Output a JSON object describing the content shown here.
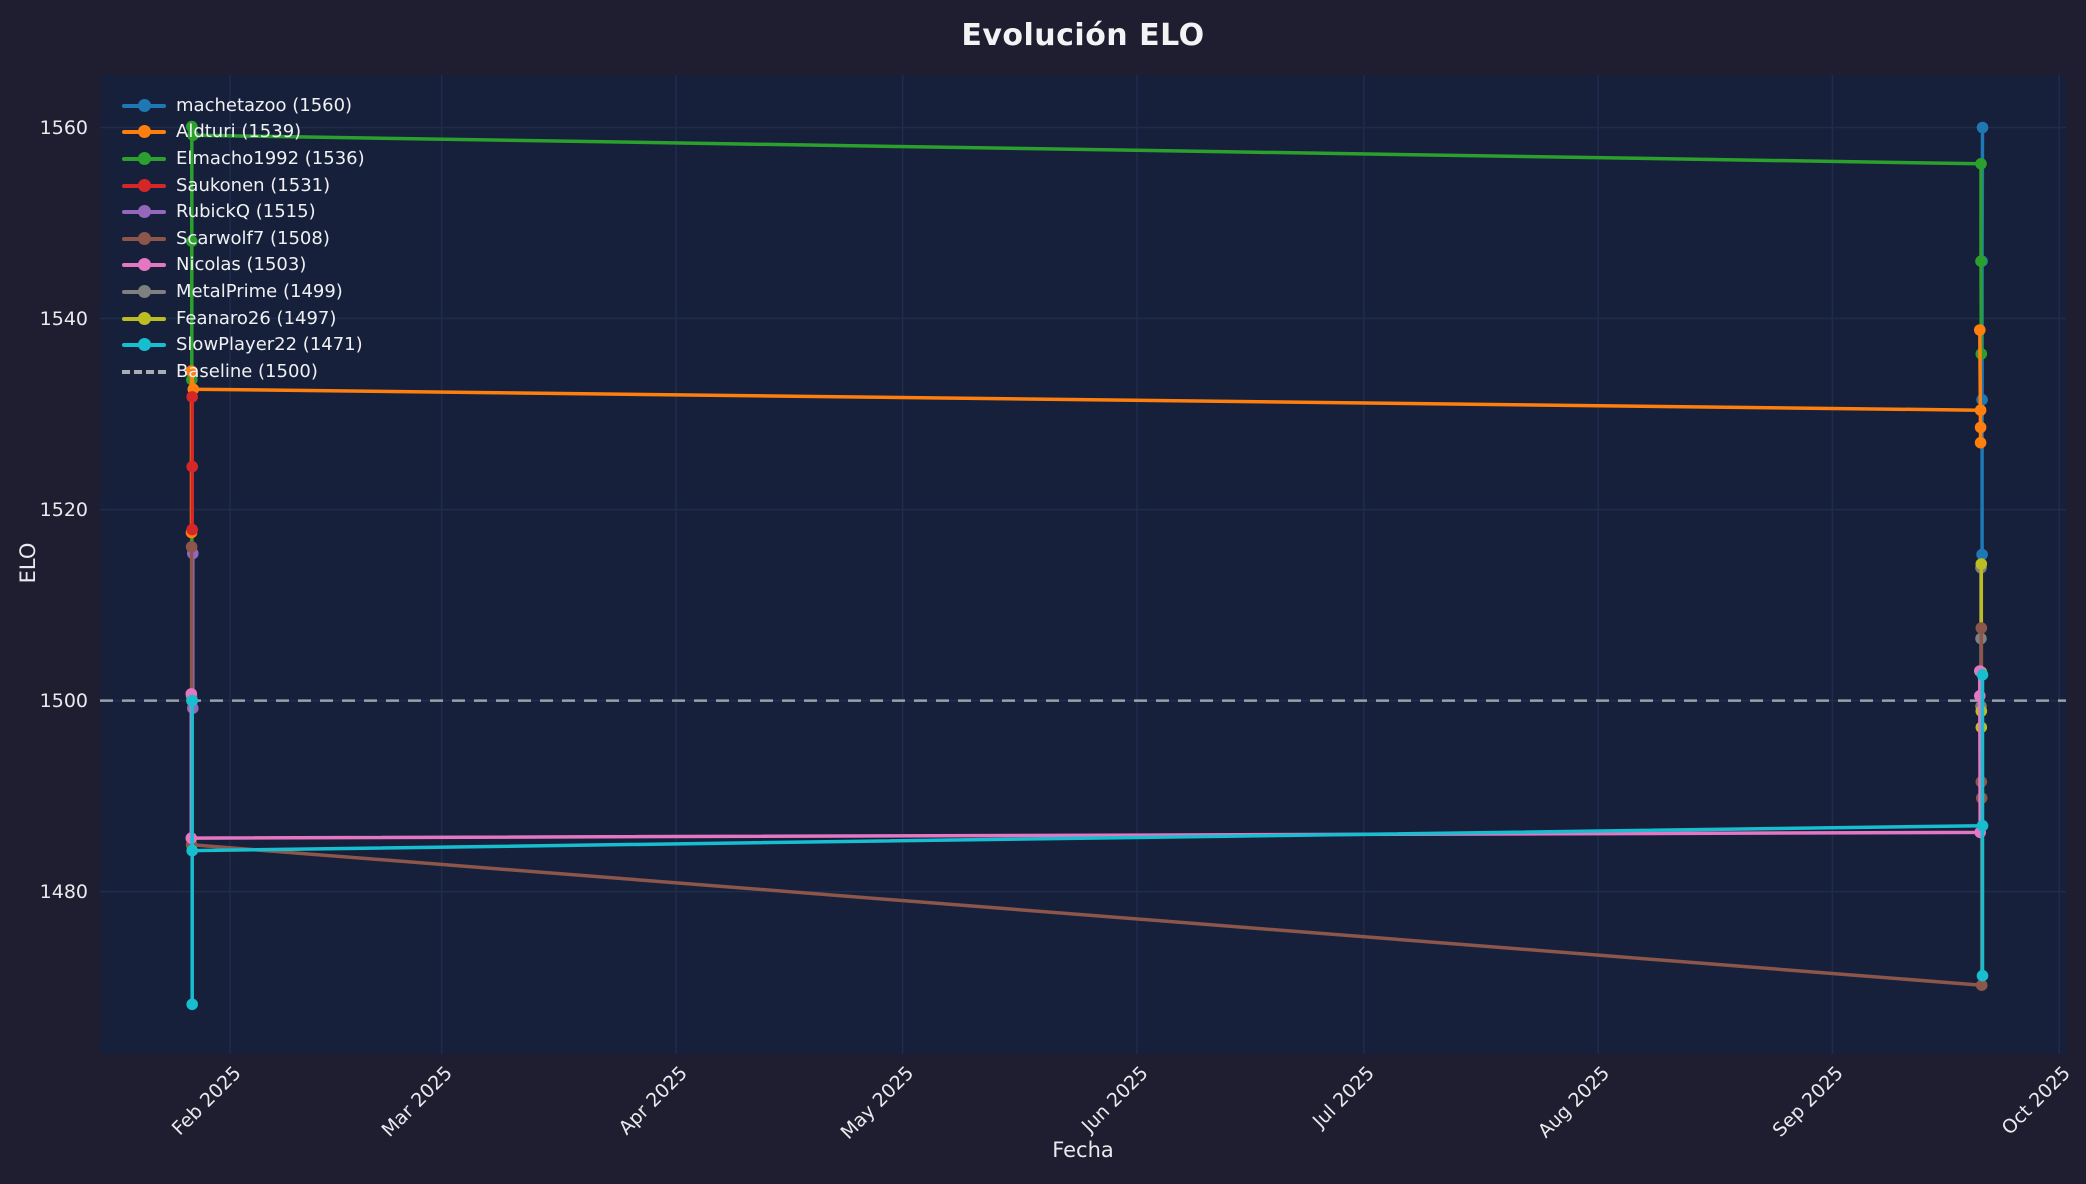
{
  "colors": {
    "figure_bg": "#1e1e30",
    "plot_bg": "#16203a",
    "text": "#eef0f2",
    "grid": "#1f2c4d",
    "baseline": "#a9aeb6"
  },
  "chart_data": {
    "type": "line",
    "title": "Evolución ELO",
    "xlabel": "Fecha",
    "ylabel": "ELO",
    "legend_position": "upper left",
    "grid": true,
    "axis": {
      "x_days": [
        0,
        260.1
      ],
      "ylim": [
        1463,
        1565.5
      ]
    },
    "y_ticks": [
      {
        "label": "1560",
        "value": 1560
      },
      {
        "label": "1540",
        "value": 1540
      },
      {
        "label": "1520",
        "value": 1520
      },
      {
        "label": "1500",
        "value": 1500
      },
      {
        "label": "1480",
        "value": 1480
      }
    ],
    "x_ticks": [
      {
        "label": "Feb 2025",
        "day": 17.2
      },
      {
        "label": "Mar 2025",
        "day": 45.2
      },
      {
        "label": "Apr 2025",
        "day": 76.2
      },
      {
        "label": "May 2025",
        "day": 106.2
      },
      {
        "label": "Jun 2025",
        "day": 137.2
      },
      {
        "label": "Jul 2025",
        "day": 167.2
      },
      {
        "label": "Aug 2025",
        "day": 198.2
      },
      {
        "label": "Sep 2025",
        "day": 229.2
      },
      {
        "label": "Oct 2025",
        "day": 259.2
      }
    ],
    "baseline": {
      "label": "Baseline (1500)",
      "value": 1500,
      "color": "#a9aeb6",
      "dashed": true
    },
    "series": [
      {
        "name": "machetazoo",
        "final_elo": 1560,
        "label": "machetazoo (1560)",
        "color": "#1f77b4",
        "points": [
          [
            249.0,
            1515.3
          ],
          [
            249.0,
            1531.5
          ],
          [
            249.0,
            1546.0
          ],
          [
            249.05,
            1560.0
          ]
        ]
      },
      {
        "name": "Aldturi",
        "final_elo": 1539,
        "label": "Aldturi (1539)",
        "color": "#ff7f0e",
        "points": [
          [
            12.1,
            1517.6
          ],
          [
            12.1,
            1534.5
          ],
          [
            12.35,
            1532.6
          ],
          [
            248.8,
            1530.4
          ],
          [
            248.8,
            1528.6
          ],
          [
            248.8,
            1527.0
          ],
          [
            248.7,
            1538.8
          ]
        ]
      },
      {
        "name": "Elmacho1992",
        "final_elo": 1536,
        "label": "Elmacho1992 (1536)",
        "color": "#2ca02c",
        "points": [
          [
            12.15,
            1500.0
          ],
          [
            12.15,
            1533.6
          ],
          [
            12.15,
            1548.1
          ],
          [
            12.15,
            1560.1
          ],
          [
            12.3,
            1559.2
          ],
          [
            248.85,
            1556.2
          ],
          [
            248.85,
            1546.0
          ],
          [
            248.9,
            1536.3
          ]
        ]
      },
      {
        "name": "Saukonen",
        "final_elo": 1531,
        "label": "Saukonen (1531)",
        "color": "#d62728",
        "points": [
          [
            12.2,
            1517.9
          ],
          [
            12.2,
            1524.5
          ],
          [
            12.2,
            1531.8
          ]
        ]
      },
      {
        "name": "RubickQ",
        "final_elo": 1515,
        "label": "RubickQ (1515)",
        "color": "#9467bd",
        "points": [
          [
            12.28,
            1499.2
          ],
          [
            12.28,
            1515.4
          ]
        ]
      },
      {
        "name": "Scarwolf7",
        "final_elo": 1508,
        "label": "Scarwolf7 (1508)",
        "color": "#8c564b",
        "points": [
          [
            12.12,
            1516.1
          ],
          [
            12.12,
            1500.4
          ],
          [
            12.12,
            1484.9
          ],
          [
            248.95,
            1470.2
          ],
          [
            248.95,
            1489.8
          ],
          [
            248.9,
            1491.5
          ],
          [
            248.9,
            1507.6
          ]
        ]
      },
      {
        "name": "Nicolas",
        "final_elo": 1503,
        "label": "Nicolas (1503)",
        "color": "#e377c2",
        "points": [
          [
            12.08,
            1500.7
          ],
          [
            12.08,
            1485.6
          ],
          [
            248.75,
            1486.2
          ],
          [
            248.7,
            1500.5
          ],
          [
            248.7,
            1503.1
          ]
        ]
      },
      {
        "name": "MetalPrime",
        "final_elo": 1499,
        "label": "MetalPrime (1499)",
        "color": "#7f7f7f",
        "points": [
          [
            248.85,
            1513.9
          ],
          [
            248.85,
            1506.5
          ],
          [
            248.85,
            1499.4
          ]
        ]
      },
      {
        "name": "Feanaro26",
        "final_elo": 1497,
        "label": "Feanaro26 (1497)",
        "color": "#bcbd22",
        "points": [
          [
            248.9,
            1514.3
          ],
          [
            248.9,
            1503.0
          ],
          [
            248.9,
            1498.9
          ],
          [
            248.9,
            1497.2
          ]
        ]
      },
      {
        "name": "SlowPlayer22",
        "final_elo": 1471,
        "label": "SlowPlayer22 (1471)",
        "color": "#17becf",
        "points": [
          [
            12.2,
            1500.0
          ],
          [
            12.2,
            1468.2
          ],
          [
            12.2,
            1484.3
          ],
          [
            249.05,
            1486.9
          ],
          [
            249.05,
            1502.7
          ],
          [
            249.05,
            1471.2
          ]
        ]
      }
    ],
    "draw_order": [
      "machetazoo",
      "Elmacho1992",
      "Aldturi",
      "Saukonen",
      "RubickQ",
      "MetalPrime",
      "Feanaro26",
      "Scarwolf7",
      "Nicolas",
      "SlowPlayer22"
    ]
  }
}
